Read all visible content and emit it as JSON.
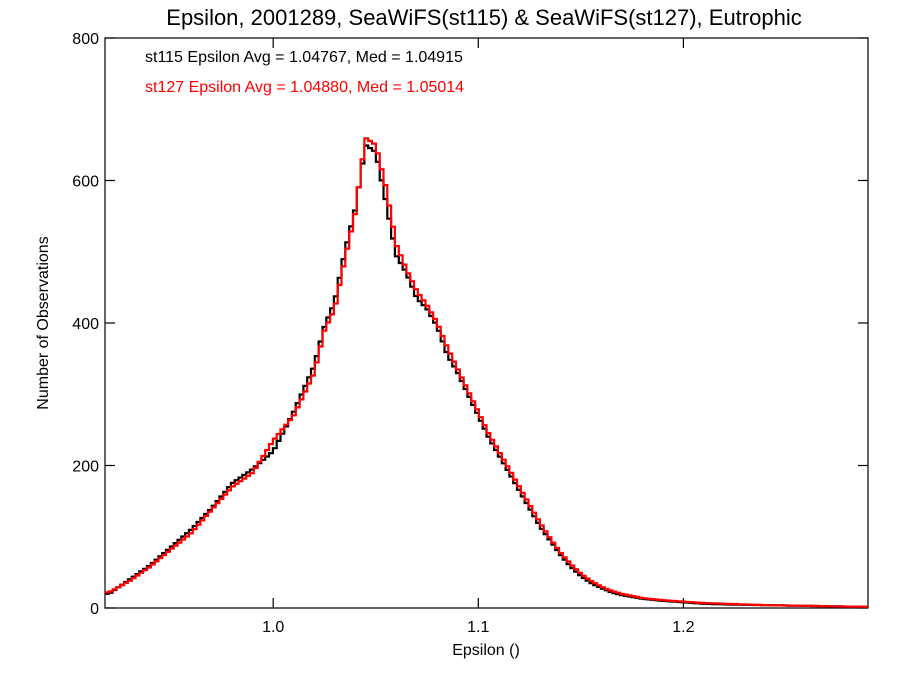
{
  "chart_data": {
    "type": "line",
    "title": "Epsilon, 2001289, SeaWiFS(st115) & SeaWiFS(st127), Eutrophic",
    "xlabel": "Epsilon ()",
    "ylabel": "Number of Observations",
    "xlim": [
      0.918,
      1.29
    ],
    "ylim": [
      0,
      800
    ],
    "x_ticks": [
      1.0,
      1.1,
      1.2
    ],
    "x_tick_labels": [
      "1.0",
      "1.1",
      "1.2"
    ],
    "y_ticks": [
      0,
      200,
      400,
      600,
      800
    ],
    "y_tick_labels": [
      "0",
      "200",
      "400",
      "600",
      "800"
    ],
    "grid": false,
    "step_style": "histogram",
    "annotations": [
      "st115 Epsilon Avg = 1.04767, Med = 1.04915",
      "st127 Epsilon Avg = 1.04880, Med = 1.05014"
    ],
    "series": [
      {
        "color": "#000000",
        "x": [
          0.92,
          0.93,
          0.94,
          0.95,
          0.96,
          0.97,
          0.98,
          0.99,
          1.0,
          1.01,
          1.02,
          1.025,
          1.03,
          1.035,
          1.04,
          1.045,
          1.05,
          1.055,
          1.06,
          1.065,
          1.07,
          1.075,
          1.08,
          1.085,
          1.09,
          1.095,
          1.1,
          1.105,
          1.11,
          1.115,
          1.12,
          1.125,
          1.13,
          1.135,
          1.14,
          1.145,
          1.15,
          1.155,
          1.16,
          1.165,
          1.17,
          1.18,
          1.19,
          1.2,
          1.21,
          1.22,
          1.24,
          1.26,
          1.28,
          1.29
        ],
        "y": [
          20,
          40,
          60,
          85,
          110,
          140,
          175,
          195,
          220,
          275,
          340,
          395,
          430,
          500,
          560,
          650,
          640,
          570,
          495,
          470,
          435,
          420,
          395,
          355,
          330,
          300,
          270,
          240,
          215,
          190,
          165,
          140,
          115,
          95,
          75,
          58,
          45,
          35,
          28,
          22,
          18,
          13,
          10,
          8,
          6,
          5,
          4,
          3,
          2,
          2
        ]
      },
      {
        "color": "#ff0000",
        "x": [
          0.92,
          0.93,
          0.94,
          0.95,
          0.96,
          0.97,
          0.98,
          0.99,
          1.0,
          1.01,
          1.02,
          1.025,
          1.03,
          1.035,
          1.04,
          1.045,
          1.05,
          1.055,
          1.06,
          1.065,
          1.07,
          1.075,
          1.08,
          1.085,
          1.09,
          1.095,
          1.1,
          1.105,
          1.11,
          1.115,
          1.12,
          1.125,
          1.13,
          1.135,
          1.14,
          1.145,
          1.15,
          1.155,
          1.16,
          1.165,
          1.17,
          1.18,
          1.19,
          1.2,
          1.21,
          1.22,
          1.24,
          1.26,
          1.28,
          1.29
        ],
        "y": [
          22,
          38,
          58,
          82,
          105,
          138,
          170,
          190,
          235,
          270,
          330,
          390,
          420,
          490,
          555,
          660,
          650,
          590,
          510,
          475,
          445,
          425,
          400,
          365,
          335,
          305,
          275,
          245,
          220,
          195,
          170,
          145,
          120,
          98,
          78,
          62,
          48,
          38,
          30,
          24,
          20,
          14,
          11,
          9,
          7,
          6,
          4,
          3,
          2,
          2
        ]
      }
    ]
  }
}
